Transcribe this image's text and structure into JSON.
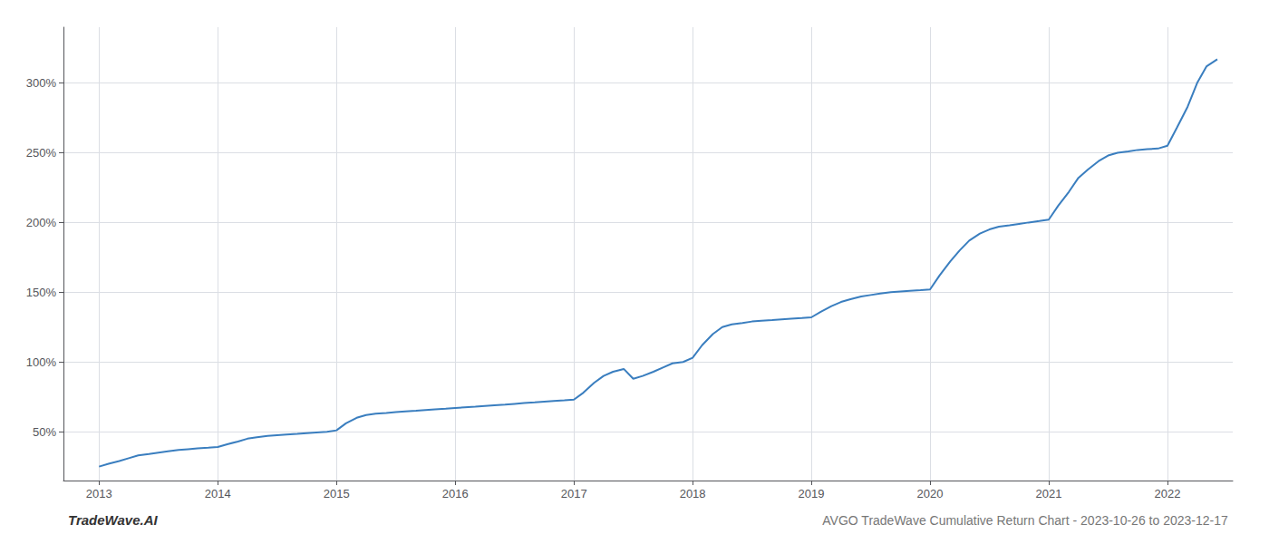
{
  "chart_data": {
    "type": "line",
    "title": "AVGO TradeWave Cumulative Return Chart - 2023-10-26 to 2023-12-17",
    "annotations": [
      "TradeWave.AI"
    ],
    "color": "#3a7ebf",
    "x": [
      2013.0,
      2013.08,
      2013.17,
      2013.25,
      2013.33,
      2013.42,
      2013.5,
      2013.58,
      2013.67,
      2013.75,
      2013.83,
      2013.92,
      2014.0,
      2014.08,
      2014.17,
      2014.25,
      2014.33,
      2014.42,
      2014.5,
      2014.58,
      2014.67,
      2014.75,
      2014.83,
      2014.92,
      2015.0,
      2015.08,
      2015.17,
      2015.25,
      2015.33,
      2015.42,
      2015.5,
      2015.58,
      2015.67,
      2015.75,
      2015.83,
      2015.92,
      2016.0,
      2016.08,
      2016.17,
      2016.25,
      2016.33,
      2016.42,
      2016.5,
      2016.58,
      2016.67,
      2016.75,
      2016.83,
      2016.92,
      2017.0,
      2017.08,
      2017.17,
      2017.25,
      2017.33,
      2017.42,
      2017.5,
      2017.58,
      2017.67,
      2017.75,
      2017.83,
      2017.92,
      2018.0,
      2018.08,
      2018.17,
      2018.25,
      2018.33,
      2018.42,
      2018.5,
      2018.58,
      2018.67,
      2018.75,
      2018.83,
      2018.92,
      2019.0,
      2019.08,
      2019.17,
      2019.25,
      2019.33,
      2019.42,
      2019.5,
      2019.58,
      2019.67,
      2019.75,
      2019.83,
      2019.92,
      2020.0,
      2020.08,
      2020.17,
      2020.25,
      2020.33,
      2020.42,
      2020.5,
      2020.58,
      2020.67,
      2020.75,
      2020.83,
      2020.92,
      2021.0,
      2021.08,
      2021.17,
      2021.25,
      2021.33,
      2021.42,
      2021.5,
      2021.58,
      2021.67,
      2021.75,
      2021.83,
      2021.92,
      2022.0,
      2022.08,
      2022.17,
      2022.25,
      2022.33,
      2022.42
    ],
    "values": [
      25,
      27,
      29,
      31,
      33,
      34,
      35,
      36,
      37,
      37.5,
      38,
      38.5,
      39,
      41,
      43,
      45,
      46,
      47,
      47.5,
      48,
      48.5,
      49,
      49.5,
      50,
      51,
      56,
      60,
      62,
      63,
      63.5,
      64,
      64.5,
      65,
      65.5,
      66,
      66.5,
      67,
      67.5,
      68,
      68.5,
      69,
      69.5,
      70,
      70.5,
      71,
      71.5,
      72,
      72.5,
      73,
      78,
      85,
      90,
      93,
      95,
      88,
      90,
      93,
      96,
      99,
      100,
      103,
      112,
      120,
      125,
      127,
      128,
      129,
      129.5,
      130,
      130.5,
      131,
      131.5,
      132,
      136,
      140,
      143,
      145,
      147,
      148,
      149,
      150,
      150.5,
      151,
      151.5,
      152,
      162,
      172,
      180,
      187,
      192,
      195,
      197,
      198,
      199,
      200,
      201,
      202,
      212,
      222,
      232,
      238,
      244,
      248,
      250,
      251,
      252,
      252.5,
      253,
      255,
      268,
      283,
      300,
      312,
      317
    ],
    "xlim": [
      2012.7,
      2022.55
    ],
    "ylim": [
      15,
      340
    ],
    "xticks": [
      2013,
      2014,
      2015,
      2016,
      2017,
      2018,
      2019,
      2020,
      2021,
      2022
    ],
    "yticks": [
      {
        "value": 50,
        "label": "50%"
      },
      {
        "value": 100,
        "label": "100%"
      },
      {
        "value": 150,
        "label": "150%"
      },
      {
        "value": 200,
        "label": "200%"
      },
      {
        "value": 250,
        "label": "250%"
      },
      {
        "value": 300,
        "label": "300%"
      }
    ],
    "grid": true
  }
}
